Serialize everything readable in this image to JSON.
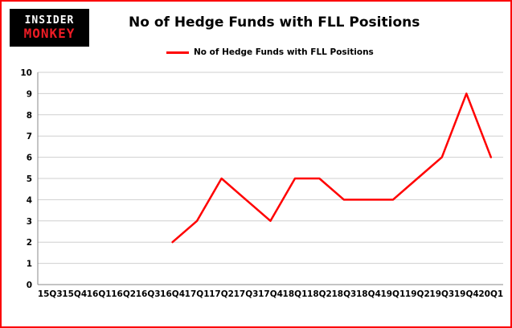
{
  "logo": {
    "line1": "INSIDER",
    "line2": "MONKEY"
  },
  "header": {
    "title": "No of Hedge Funds with FLL Positions"
  },
  "legend": {
    "label": "No of Hedge Funds with FLL Positions"
  },
  "colors": {
    "accent_red": "#ff0000",
    "frame_border": "#fb0207",
    "grid": "#cfcfcf",
    "axis": "#888888",
    "axis_text": "#000000",
    "logo_red": "#ee1c25"
  },
  "chart_data": {
    "type": "line",
    "title": "No of Hedge Funds with FLL Positions",
    "categories": [
      "15Q3",
      "15Q4",
      "16Q1",
      "16Q2",
      "16Q3",
      "16Q4",
      "17Q1",
      "17Q2",
      "17Q3",
      "17Q4",
      "18Q1",
      "18Q2",
      "18Q3",
      "18Q4",
      "19Q1",
      "19Q2",
      "19Q3",
      "19Q4",
      "20Q1"
    ],
    "series": [
      {
        "name": "No of Hedge Funds with FLL Positions",
        "color": "#ff0000",
        "values": [
          null,
          null,
          null,
          null,
          null,
          2,
          3,
          5,
          4,
          3,
          5,
          5,
          4,
          4,
          4,
          5,
          6,
          9,
          6
        ]
      }
    ],
    "xlabel": "",
    "ylabel": "",
    "ylim": [
      0,
      10
    ],
    "ytick_step": 1,
    "grid": true,
    "legend_position": "top-left"
  }
}
